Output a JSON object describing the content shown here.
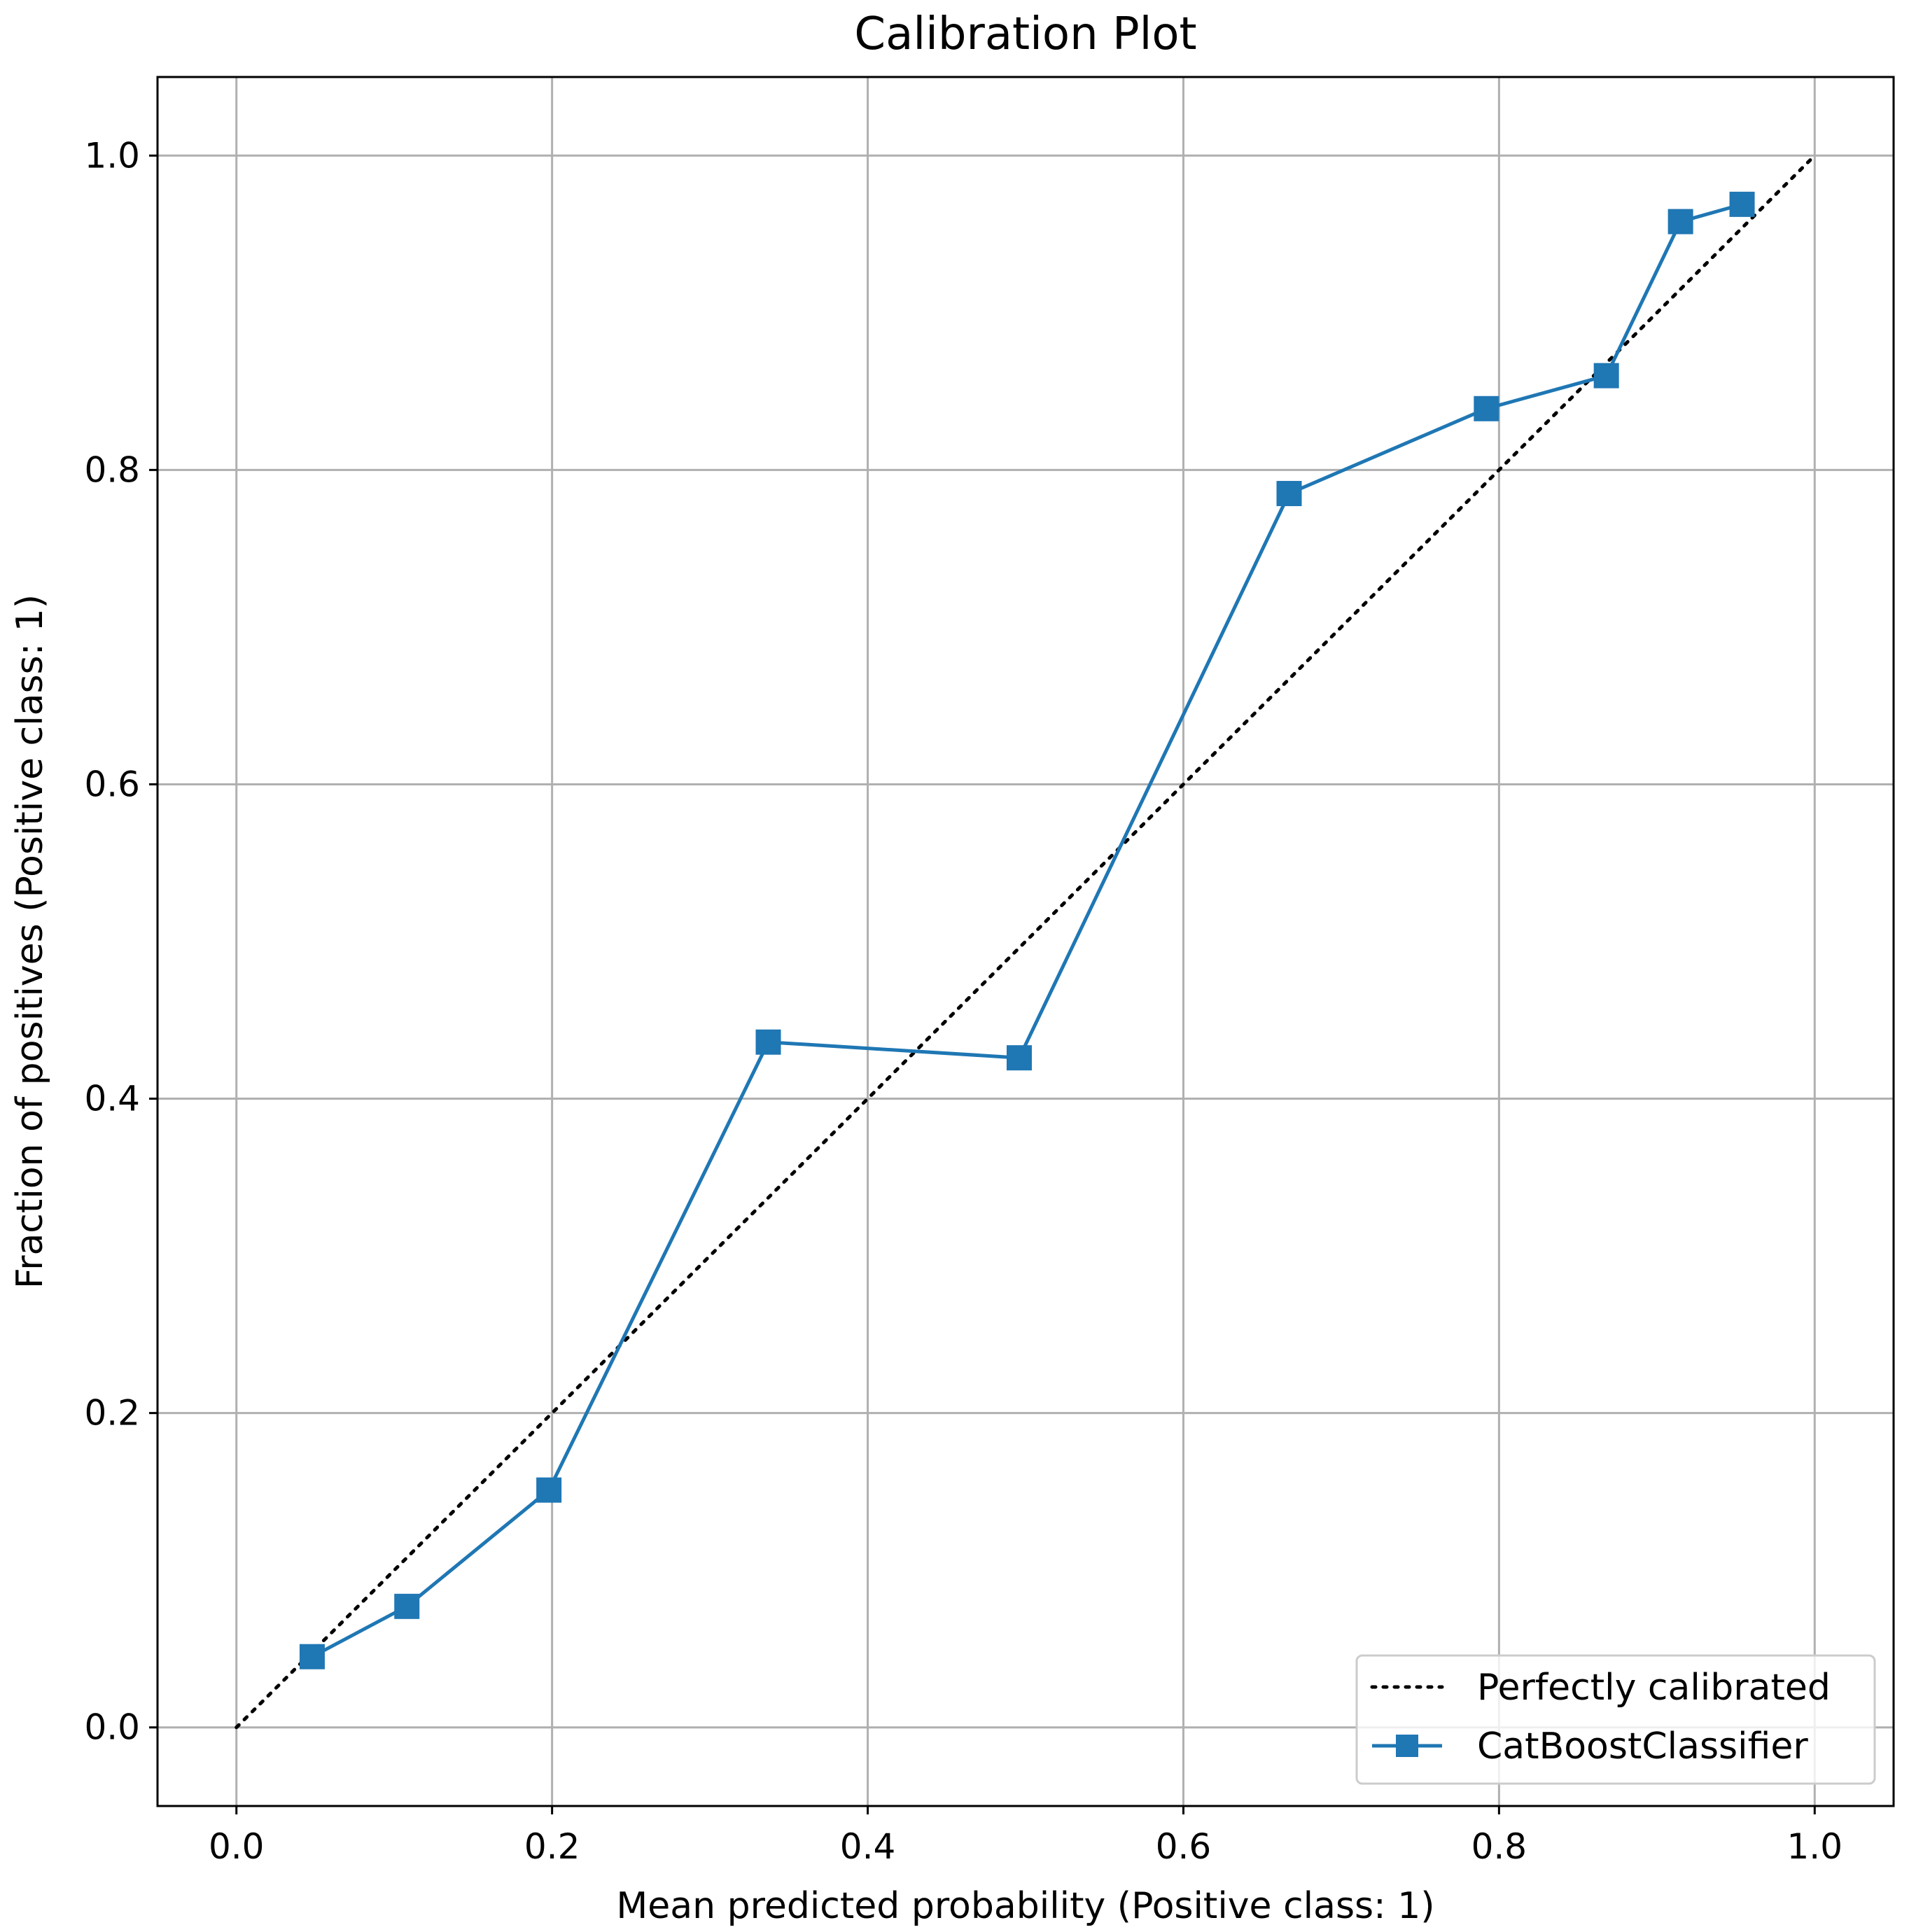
{
  "chart_data": {
    "type": "line",
    "title": "Calibration Plot",
    "xlabel": "Mean predicted probability (Positive class: 1)",
    "ylabel": "Fraction of positives (Positive class: 1)",
    "xlim": [
      -0.05,
      1.05
    ],
    "ylim": [
      -0.05,
      1.05
    ],
    "xticks": [
      "0.0",
      "0.2",
      "0.4",
      "0.6",
      "0.8",
      "1.0"
    ],
    "yticks": [
      "0.0",
      "0.2",
      "0.4",
      "0.6",
      "0.8",
      "1.0"
    ],
    "grid": true,
    "legend_position": "lower-right",
    "series": [
      {
        "name": "Perfectly calibrated",
        "style": "dotted",
        "color": "#000000",
        "x": [
          0.0,
          1.0
        ],
        "y": [
          0.0,
          1.0
        ]
      },
      {
        "name": "CatBoostClassifier",
        "style": "solid-square-markers",
        "color": "#1f77b4",
        "x": [
          0.048,
          0.108,
          0.198,
          0.337,
          0.496,
          0.667,
          0.792,
          0.868,
          0.915,
          0.954
        ],
        "y": [
          0.045,
          0.077,
          0.151,
          0.436,
          0.426,
          0.785,
          0.839,
          0.86,
          0.958,
          0.969
        ]
      }
    ]
  }
}
